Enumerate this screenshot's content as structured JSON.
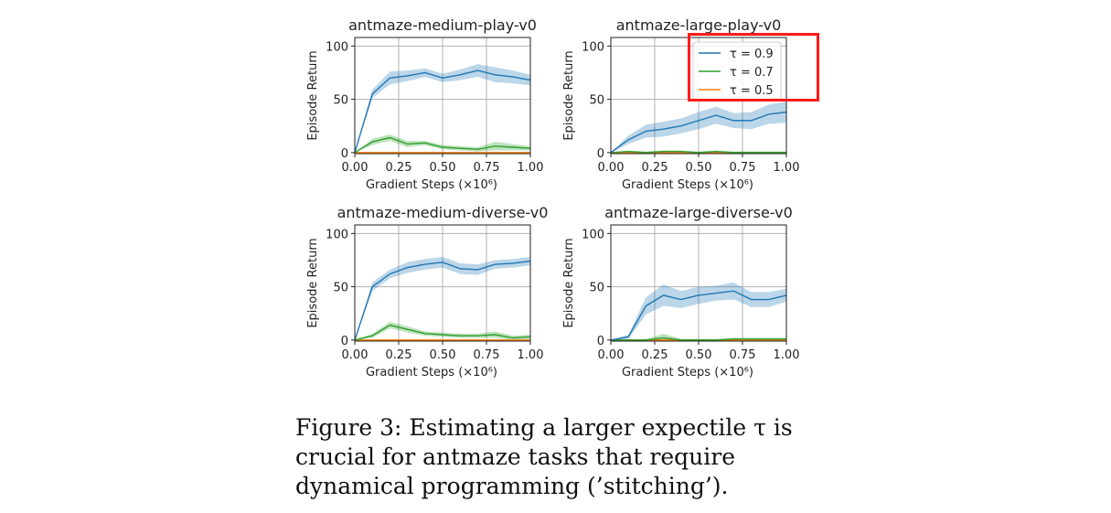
{
  "chart_data": [
    {
      "type": "line",
      "title": "antmaze-medium-play-v0",
      "xlabel": "Gradient Steps (×10⁶)",
      "ylabel": "Episode Return",
      "xlim": [
        0,
        1
      ],
      "ylim": [
        -1,
        108
      ],
      "xticks": [
        "0.00",
        "0.25",
        "0.50",
        "0.75",
        "1.00"
      ],
      "yticks": [
        "0",
        "50",
        "100"
      ],
      "grid": true,
      "x": [
        0,
        0.1,
        0.2,
        0.3,
        0.4,
        0.5,
        0.6,
        0.7,
        0.8,
        0.9,
        1.0
      ],
      "series": [
        {
          "name": "τ = 0.9",
          "color": "#1f77b4",
          "values": [
            0,
            55,
            70,
            72,
            75,
            70,
            73,
            77,
            73,
            71,
            68
          ],
          "spread": [
            0,
            4,
            6,
            5,
            4,
            4,
            5,
            6,
            7,
            6,
            5
          ]
        },
        {
          "name": "τ = 0.7",
          "color": "#2ca02c",
          "values": [
            0,
            10,
            14,
            8,
            9,
            5,
            4,
            3,
            6,
            5,
            4
          ],
          "spread": [
            0,
            3,
            3,
            3,
            2,
            2,
            2,
            2,
            4,
            3,
            2
          ]
        },
        {
          "name": "τ = 0.5",
          "color": "#ff7f0e",
          "values": [
            0,
            0,
            0,
            0,
            0,
            0,
            0,
            0,
            0,
            0,
            0
          ],
          "spread": [
            0,
            0,
            0,
            0,
            0,
            0,
            0,
            0,
            0,
            0,
            0
          ]
        }
      ]
    },
    {
      "type": "line",
      "title": "antmaze-large-play-v0",
      "xlabel": "Gradient Steps (×10⁶)",
      "ylabel": "Episode Return",
      "xlim": [
        0,
        1
      ],
      "ylim": [
        -1,
        108
      ],
      "xticks": [
        "0.00",
        "0.25",
        "0.50",
        "0.75",
        "1.00"
      ],
      "yticks": [
        "0",
        "50",
        "100"
      ],
      "grid": true,
      "legend": "top-right",
      "x": [
        0,
        0.1,
        0.2,
        0.3,
        0.4,
        0.5,
        0.6,
        0.7,
        0.8,
        0.9,
        1.0
      ],
      "series": [
        {
          "name": "τ = 0.9",
          "color": "#1f77b4",
          "values": [
            0,
            12,
            20,
            22,
            25,
            30,
            35,
            30,
            30,
            36,
            38
          ],
          "spread": [
            0,
            4,
            6,
            7,
            7,
            8,
            8,
            7,
            8,
            9,
            10
          ]
        },
        {
          "name": "τ = 0.7",
          "color": "#2ca02c",
          "values": [
            0,
            1,
            0,
            1,
            1,
            0,
            1,
            0,
            0,
            0,
            0
          ],
          "spread": [
            0,
            1,
            1,
            1,
            1,
            1,
            1,
            1,
            1,
            1,
            1
          ]
        },
        {
          "name": "τ = 0.5",
          "color": "#ff7f0e",
          "values": [
            0,
            0,
            0,
            0,
            0,
            0,
            0,
            0,
            0,
            0,
            0
          ],
          "spread": [
            0,
            0,
            0,
            0,
            0,
            0,
            0,
            0,
            0,
            0,
            0
          ]
        }
      ]
    },
    {
      "type": "line",
      "title": "antmaze-medium-diverse-v0",
      "xlabel": "Gradient Steps (×10⁶)",
      "ylabel": "Episode Return",
      "xlim": [
        0,
        1
      ],
      "ylim": [
        -1,
        108
      ],
      "xticks": [
        "0.00",
        "0.25",
        "0.50",
        "0.75",
        "1.00"
      ],
      "yticks": [
        "0",
        "50",
        "100"
      ],
      "grid": true,
      "x": [
        0,
        0.1,
        0.2,
        0.3,
        0.4,
        0.5,
        0.6,
        0.7,
        0.8,
        0.9,
        1.0
      ],
      "series": [
        {
          "name": "τ = 0.9",
          "color": "#1f77b4",
          "values": [
            0,
            50,
            62,
            68,
            71,
            73,
            67,
            66,
            71,
            72,
            74
          ],
          "spread": [
            0,
            4,
            4,
            5,
            5,
            5,
            5,
            5,
            4,
            4,
            4
          ]
        },
        {
          "name": "τ = 0.7",
          "color": "#2ca02c",
          "values": [
            0,
            4,
            14,
            10,
            6,
            5,
            4,
            4,
            5,
            2,
            3
          ],
          "spread": [
            0,
            2,
            3,
            3,
            2,
            2,
            2,
            2,
            3,
            2,
            2
          ]
        },
        {
          "name": "τ = 0.5",
          "color": "#ff7f0e",
          "values": [
            0,
            0,
            0,
            0,
            0,
            0,
            0,
            0,
            0,
            0,
            0
          ],
          "spread": [
            0,
            0,
            0,
            0,
            0,
            0,
            0,
            0,
            0,
            0,
            0
          ]
        }
      ]
    },
    {
      "type": "line",
      "title": "antmaze-large-diverse-v0",
      "xlabel": "Gradient Steps (×10⁶)",
      "ylabel": "Episode Return",
      "xlim": [
        0,
        1
      ],
      "ylim": [
        -1,
        108
      ],
      "xticks": [
        "0.00",
        "0.25",
        "0.50",
        "0.75",
        "1.00"
      ],
      "yticks": [
        "0",
        "50",
        "100"
      ],
      "grid": true,
      "x": [
        0,
        0.1,
        0.2,
        0.3,
        0.4,
        0.5,
        0.6,
        0.7,
        0.8,
        0.9,
        1.0
      ],
      "series": [
        {
          "name": "τ = 0.9",
          "color": "#1f77b4",
          "values": [
            0,
            3,
            32,
            42,
            38,
            42,
            44,
            46,
            38,
            38,
            42
          ],
          "spread": [
            0,
            2,
            8,
            10,
            8,
            8,
            7,
            8,
            7,
            7,
            6
          ]
        },
        {
          "name": "τ = 0.7",
          "color": "#2ca02c",
          "values": [
            0,
            0,
            0,
            2,
            0,
            0,
            0,
            1,
            1,
            1,
            1
          ],
          "spread": [
            0,
            0,
            1,
            4,
            1,
            1,
            1,
            1,
            1,
            1,
            1
          ]
        },
        {
          "name": "τ = 0.5",
          "color": "#ff7f0e",
          "values": [
            0,
            0,
            0,
            0,
            0,
            0,
            0,
            0,
            0,
            0,
            0
          ],
          "spread": [
            0,
            0,
            0,
            0,
            0,
            0,
            0,
            0,
            0,
            0,
            0
          ]
        }
      ]
    }
  ],
  "caption": "Figure 3: Estimating a larger expectile τ is crucial for antmaze tasks that require dynamical programming (’stitching’).",
  "colors": {
    "highlight": "#ff1a1a",
    "grid": "#b0b0b0"
  }
}
